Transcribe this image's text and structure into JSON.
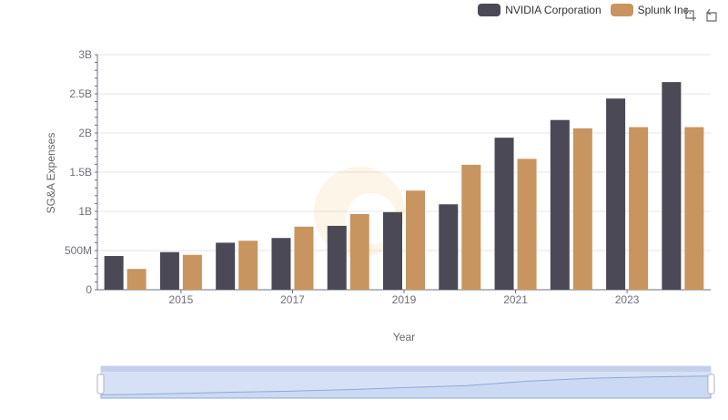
{
  "legend": [
    {
      "name": "NVIDIA Corporation",
      "color": "#4a4955"
    },
    {
      "name": "Splunk Inc.",
      "color": "#c89460"
    }
  ],
  "toolbox": {
    "zoom_icon": "zoom-icon",
    "restore_icon": "restore-icon"
  },
  "chart_data": {
    "type": "bar",
    "xlabel": "Year",
    "ylabel": "SG&A Expenses",
    "categories": [
      "2014",
      "2015",
      "2016",
      "2017",
      "2018",
      "2019",
      "2020",
      "2021",
      "2022",
      "2023",
      "2024"
    ],
    "x_tick_labels": [
      "2015",
      "2017",
      "2019",
      "2021",
      "2023"
    ],
    "y_ticks": [
      "0",
      "500M",
      "1B",
      "1.5B",
      "2B",
      "2.5B",
      "3B"
    ],
    "ylim": [
      0,
      3000000000
    ],
    "series": [
      {
        "name": "NVIDIA Corporation",
        "color": "#4a4955",
        "values": [
          430000000,
          480000000,
          600000000,
          660000000,
          815000000,
          990000000,
          1090000000,
          1940000000,
          2166000000,
          2440000000,
          2650000000
        ]
      },
      {
        "name": "Splunk Inc.",
        "color": "#c89460",
        "values": [
          265000000,
          445000000,
          625000000,
          805000000,
          965000000,
          1265000000,
          1595000000,
          1670000000,
          2060000000,
          2075000000,
          2075000000
        ]
      }
    ],
    "grid": true,
    "legend_position": "top-right",
    "data_zoom": {
      "start": 0,
      "end": 100
    }
  }
}
